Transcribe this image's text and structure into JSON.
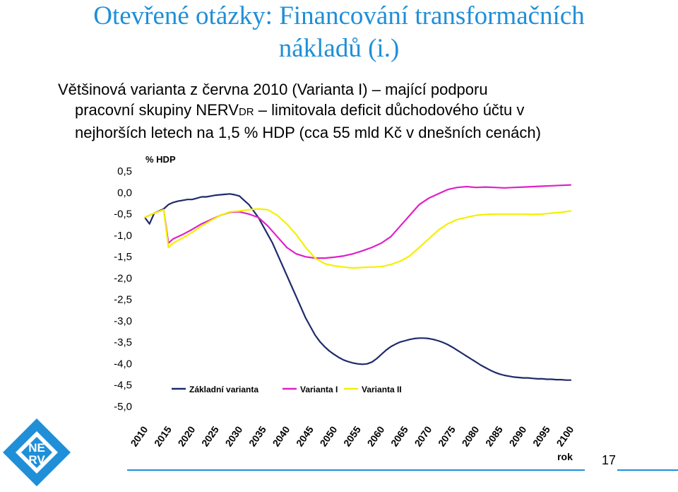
{
  "slide": {
    "title_line1": "Otevřené otázky: Financování transformačních",
    "title_line2": "nákladů (i.)",
    "text_line1": "Většinová varianta z června 2010 (Varianta I) – mající podporu",
    "text_line2a": "pracovní skupiny NERV",
    "text_line2_small": "DR",
    "text_line2b": " – limitovala deficit důchodového účtu v",
    "text_line3": "nejhorších letech na 1,5 % HDP (cca 55 mld Kč v dnešních cenách)",
    "page_number": "17",
    "logo_text": [
      "NE",
      "RV"
    ]
  },
  "colors": {
    "title": "#1f8fd8",
    "zakladni": "#1f2a6b",
    "varianta1": "#e020c8",
    "varianta2": "#f4f000",
    "logo_blue": "#1f8fd8"
  },
  "chart_data": {
    "type": "line",
    "ylabel": "% HDP",
    "xlabel": "rok",
    "xlim": [
      2010,
      2100
    ],
    "ylim": [
      -5.0,
      0.5
    ],
    "x_ticks": [
      "2010",
      "2015",
      "2020",
      "2025",
      "2030",
      "2035",
      "2040",
      "2045",
      "2050",
      "2055",
      "2060",
      "2065",
      "2070",
      "2075",
      "2080",
      "2085",
      "2090",
      "2095",
      "2100"
    ],
    "y_ticks": [
      "0,5",
      "0,0",
      "-0,5",
      "-1,0",
      "-1,5",
      "-2,0",
      "-2,5",
      "-3,0",
      "-3,5",
      "-4,0",
      "-4,5",
      "-5,0"
    ],
    "legend_position": "bottom",
    "grid": false,
    "series": [
      {
        "name": "Základní varianta",
        "color": "#1f2a6b",
        "x": [
          2010,
          2011,
          2012,
          2013,
          2014,
          2015,
          2016,
          2017,
          2018,
          2019,
          2020,
          2021,
          2022,
          2023,
          2024,
          2025,
          2026,
          2027,
          2028,
          2029,
          2030,
          2031,
          2032,
          2033,
          2034,
          2035,
          2036,
          2037,
          2038,
          2039,
          2040,
          2041,
          2042,
          2043,
          2044,
          2045,
          2046,
          2047,
          2048,
          2049,
          2050,
          2051,
          2052,
          2053,
          2054,
          2055,
          2056,
          2057,
          2058,
          2059,
          2060,
          2061,
          2062,
          2063,
          2064,
          2065,
          2066,
          2067,
          2068,
          2069,
          2070,
          2071,
          2072,
          2073,
          2074,
          2075,
          2076,
          2077,
          2078,
          2079,
          2080,
          2081,
          2082,
          2083,
          2084,
          2085,
          2086,
          2087,
          2088,
          2089,
          2090,
          2091,
          2092,
          2093,
          2094,
          2095,
          2096,
          2097,
          2098,
          2099,
          2100
        ],
        "y": [
          -0.6,
          -0.75,
          -0.5,
          -0.45,
          -0.4,
          -0.3,
          -0.25,
          -0.22,
          -0.2,
          -0.18,
          -0.18,
          -0.15,
          -0.12,
          -0.12,
          -0.1,
          -0.08,
          -0.07,
          -0.06,
          -0.05,
          -0.07,
          -0.1,
          -0.2,
          -0.3,
          -0.45,
          -0.6,
          -0.8,
          -1.0,
          -1.2,
          -1.45,
          -1.7,
          -1.95,
          -2.2,
          -2.45,
          -2.7,
          -2.95,
          -3.15,
          -3.35,
          -3.5,
          -3.62,
          -3.72,
          -3.8,
          -3.87,
          -3.93,
          -3.97,
          -4.0,
          -4.02,
          -4.03,
          -4.02,
          -3.98,
          -3.9,
          -3.8,
          -3.7,
          -3.62,
          -3.56,
          -3.51,
          -3.48,
          -3.45,
          -3.43,
          -3.42,
          -3.42,
          -3.43,
          -3.45,
          -3.48,
          -3.52,
          -3.57,
          -3.63,
          -3.7,
          -3.77,
          -3.84,
          -3.91,
          -3.98,
          -4.05,
          -4.11,
          -4.17,
          -4.22,
          -4.26,
          -4.29,
          -4.31,
          -4.33,
          -4.34,
          -4.35,
          -4.35,
          -4.36,
          -4.37,
          -4.37,
          -4.38,
          -4.38,
          -4.39,
          -4.39,
          -4.4,
          -4.4
        ]
      },
      {
        "name": "Varianta I",
        "color": "#e020c8",
        "x": [
          2010,
          2012,
          2014,
          2015,
          2016,
          2018,
          2020,
          2022,
          2024,
          2026,
          2028,
          2030,
          2032,
          2034,
          2036,
          2038,
          2040,
          2042,
          2044,
          2046,
          2048,
          2050,
          2052,
          2054,
          2056,
          2058,
          2060,
          2062,
          2064,
          2066,
          2068,
          2070,
          2072,
          2074,
          2076,
          2078,
          2080,
          2082,
          2084,
          2086,
          2088,
          2090,
          2092,
          2094,
          2096,
          2098,
          2100
        ],
        "y": [
          -0.6,
          -0.5,
          -0.42,
          -1.2,
          -1.1,
          -1.0,
          -0.88,
          -0.75,
          -0.65,
          -0.55,
          -0.48,
          -0.47,
          -0.52,
          -0.6,
          -0.8,
          -1.05,
          -1.3,
          -1.45,
          -1.52,
          -1.55,
          -1.55,
          -1.53,
          -1.5,
          -1.45,
          -1.38,
          -1.3,
          -1.2,
          -1.05,
          -0.8,
          -0.55,
          -0.3,
          -0.15,
          -0.05,
          0.05,
          0.1,
          0.12,
          0.1,
          0.11,
          0.1,
          0.09,
          0.1,
          0.11,
          0.12,
          0.13,
          0.14,
          0.15,
          0.16
        ]
      },
      {
        "name": "Varianta II",
        "color": "#f4f000",
        "x": [
          2010,
          2012,
          2014,
          2015,
          2016,
          2018,
          2020,
          2022,
          2024,
          2026,
          2028,
          2030,
          2032,
          2034,
          2036,
          2038,
          2040,
          2042,
          2044,
          2046,
          2048,
          2050,
          2052,
          2054,
          2056,
          2058,
          2060,
          2062,
          2064,
          2066,
          2068,
          2070,
          2072,
          2074,
          2076,
          2078,
          2080,
          2082,
          2084,
          2086,
          2088,
          2090,
          2092,
          2094,
          2096,
          2098,
          2100
        ],
        "y": [
          -0.6,
          -0.5,
          -0.42,
          -1.3,
          -1.2,
          -1.08,
          -0.95,
          -0.8,
          -0.67,
          -0.55,
          -0.47,
          -0.45,
          -0.42,
          -0.4,
          -0.42,
          -0.55,
          -0.75,
          -1.0,
          -1.3,
          -1.55,
          -1.68,
          -1.73,
          -1.76,
          -1.78,
          -1.77,
          -1.76,
          -1.75,
          -1.7,
          -1.62,
          -1.5,
          -1.3,
          -1.1,
          -0.9,
          -0.75,
          -0.65,
          -0.6,
          -0.55,
          -0.53,
          -0.52,
          -0.52,
          -0.52,
          -0.52,
          -0.53,
          -0.52,
          -0.5,
          -0.48,
          -0.45
        ]
      }
    ]
  }
}
